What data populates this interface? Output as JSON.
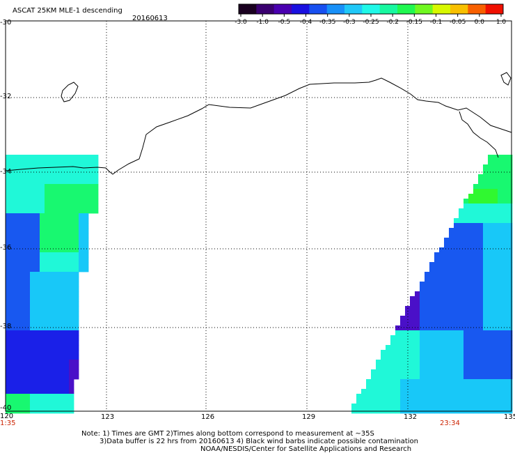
{
  "header": {
    "product": "ASCAT 25KM MLE-1 descending",
    "date": "20160613"
  },
  "colorbar": {
    "ticks": [
      "-3.0",
      "-1.0",
      "-0.5",
      "-0.4",
      "-0.35",
      "-0.3",
      "-0.25",
      "-0.2",
      "-0.15",
      "-0.1",
      "-0.05",
      "0.0",
      "1.0"
    ],
    "colors": [
      "#1a0020",
      "#3a0070",
      "#4a00b0",
      "#1a10e0",
      "#1850f0",
      "#1890f8",
      "#20c8f8",
      "#20f8e8",
      "#18f8a0",
      "#20f850",
      "#70f820",
      "#d8f800",
      "#f8c000",
      "#f86000",
      "#f01000"
    ]
  },
  "map": {
    "lat_labels": [
      "-30",
      "-32",
      "-34",
      "-36",
      "-38",
      "-40"
    ],
    "lon_labels": [
      "120",
      "123",
      "126",
      "129",
      "132",
      "135"
    ],
    "time_labels": [
      "1:35",
      "23:34"
    ],
    "colors": {
      "deep_blue": "#1a20e8",
      "blue": "#1858f0",
      "purple": "#4a10c8",
      "cyan": "#18c8f8",
      "aqua": "#20f8d8",
      "green": "#18f870",
      "lime": "#30f830"
    }
  },
  "notes": {
    "line1": "Note: 1) Times are GMT 2)Times along bottom correspond to measurement at ~35S",
    "line2": "3)Data buffer is 22 hrs from 20160613 4) Black wind barbs indicate possible contamination",
    "line3": "NOAA/NESDIS/Center for Satellite Applications and Research"
  }
}
